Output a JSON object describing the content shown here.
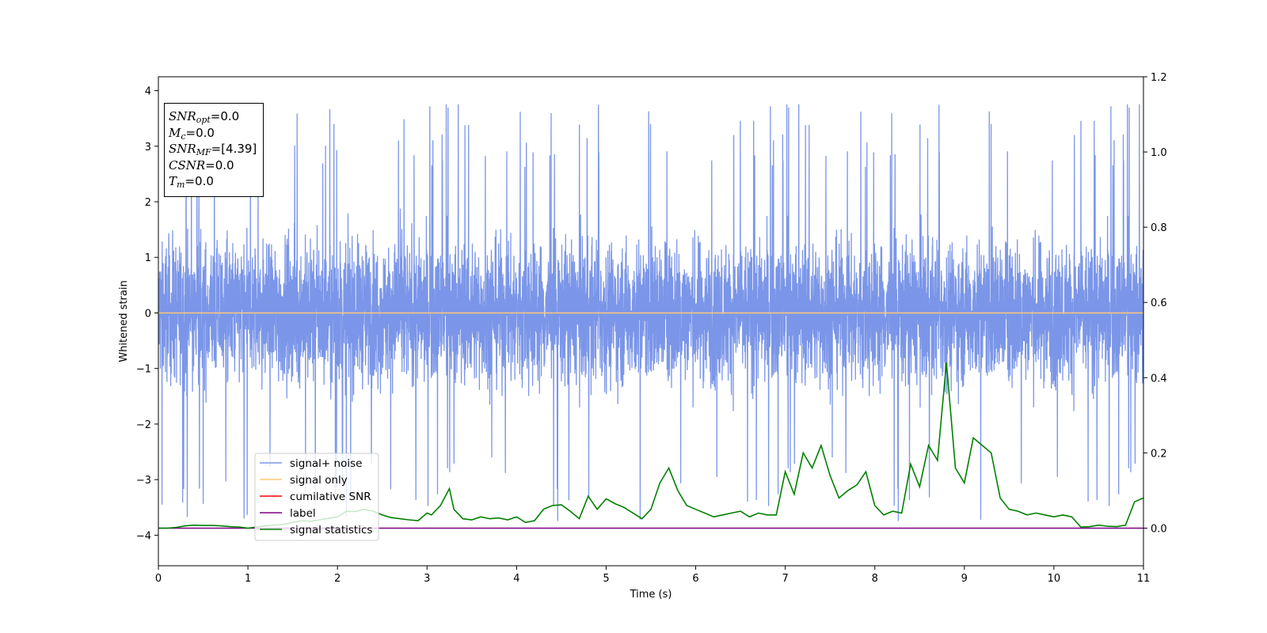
{
  "chart_data": {
    "type": "line",
    "title": "",
    "xlabel": "Time (s)",
    "ylabel": "Whitened strain",
    "xlim": [
      0,
      11
    ],
    "ylim": [
      -4.55,
      4.25
    ],
    "y2lim": [
      -0.1,
      1.2
    ],
    "xticks": [
      0,
      1,
      2,
      3,
      4,
      5,
      6,
      7,
      8,
      9,
      10,
      11
    ],
    "yticks": [
      -4,
      -3,
      -2,
      -1,
      0,
      1,
      2,
      3,
      4
    ],
    "y2ticks": [
      "0.0",
      "0.2",
      "0.4",
      "0.6",
      "0.8",
      "1.0",
      "1.2"
    ],
    "grid": false,
    "legend_position": "lower-left",
    "series": [
      {
        "name": "signal+ noise",
        "color": "#7b96e8",
        "axis": "left",
        "description_of_values": "dense noise roughly between -4 and 3.9"
      },
      {
        "name": "signal only",
        "color": "#ffc87a",
        "axis": "left",
        "constant": 0.0
      },
      {
        "name": "cumilative SNR",
        "color": "#ff0000",
        "axis": "left"
      },
      {
        "name": "label",
        "color": "#800080",
        "axis": "right",
        "constant": 0.0
      },
      {
        "name": "signal statistics",
        "color": "#008000",
        "axis": "right",
        "x": [
          0,
          0.1,
          0.2,
          0.3,
          0.4,
          0.5,
          0.6,
          0.7,
          0.8,
          0.9,
          1.0,
          1.1,
          1.2,
          1.3,
          1.4,
          1.5,
          1.6,
          1.7,
          1.8,
          1.9,
          2.0,
          2.1,
          2.2,
          2.3,
          2.4,
          2.5,
          2.6,
          2.7,
          2.8,
          2.9,
          3.0,
          3.05,
          3.15,
          3.25,
          3.3,
          3.4,
          3.5,
          3.6,
          3.7,
          3.8,
          3.9,
          4.0,
          4.1,
          4.2,
          4.3,
          4.4,
          4.5,
          4.6,
          4.7,
          4.8,
          4.9,
          5.0,
          5.1,
          5.2,
          5.3,
          5.4,
          5.5,
          5.6,
          5.7,
          5.8,
          5.9,
          6.0,
          6.1,
          6.2,
          6.3,
          6.4,
          6.5,
          6.6,
          6.7,
          6.8,
          6.9,
          7.0,
          7.1,
          7.2,
          7.3,
          7.4,
          7.5,
          7.6,
          7.7,
          7.8,
          7.9,
          8.0,
          8.1,
          8.2,
          8.3,
          8.4,
          8.5,
          8.6,
          8.7,
          8.75,
          8.8,
          8.9,
          9.0,
          9.1,
          9.2,
          9.3,
          9.4,
          9.5,
          9.6,
          9.7,
          9.8,
          9.9,
          10.0,
          10.1,
          10.2,
          10.3,
          10.4,
          10.5,
          10.6,
          10.7,
          10.8,
          10.9,
          11.0
        ],
        "y": [
          0.0,
          0.0,
          0.002,
          0.006,
          0.008,
          0.007,
          0.007,
          0.006,
          0.004,
          0.003,
          0.0,
          0.003,
          0.006,
          0.008,
          0.01,
          0.015,
          0.02,
          0.018,
          0.022,
          0.026,
          0.03,
          0.045,
          0.044,
          0.05,
          0.045,
          0.035,
          0.028,
          0.025,
          0.022,
          0.02,
          0.04,
          0.035,
          0.06,
          0.105,
          0.05,
          0.025,
          0.022,
          0.03,
          0.025,
          0.027,
          0.022,
          0.03,
          0.015,
          0.02,
          0.05,
          0.06,
          0.062,
          0.045,
          0.025,
          0.085,
          0.05,
          0.078,
          0.065,
          0.055,
          0.04,
          0.025,
          0.05,
          0.12,
          0.16,
          0.1,
          0.06,
          0.05,
          0.04,
          0.03,
          0.035,
          0.04,
          0.045,
          0.03,
          0.04,
          0.035,
          0.035,
          0.15,
          0.09,
          0.2,
          0.16,
          0.22,
          0.14,
          0.08,
          0.1,
          0.115,
          0.15,
          0.06,
          0.035,
          0.045,
          0.04,
          0.17,
          0.11,
          0.22,
          0.18,
          0.31,
          0.44,
          0.16,
          0.12,
          0.24,
          0.22,
          0.2,
          0.08,
          0.05,
          0.045,
          0.035,
          0.04,
          0.035,
          0.03,
          0.035,
          0.03,
          0.003,
          0.004,
          0.008,
          0.005,
          0.004,
          0.008,
          0.07,
          0.08
        ]
      }
    ]
  },
  "info_box": {
    "snr_opt": {
      "sym": "SNR",
      "sub": "opt",
      "val": "=0.0"
    },
    "mc": {
      "sym": "M",
      "sub": "c",
      "val": "=0.0"
    },
    "snr_mf": {
      "sym": "SNR",
      "sub": "MF",
      "val": "=[4.39]"
    },
    "csnr": {
      "sym": "CSNR",
      "val": "=0.0"
    },
    "tm": {
      "sym": "T",
      "sub": "m",
      "val": "=0.0"
    }
  },
  "colors": {
    "noise": "#7b96e8",
    "signal": "#ffc87a",
    "cumulative": "#ff0000",
    "label": "#800080",
    "statistics": "#008000"
  }
}
